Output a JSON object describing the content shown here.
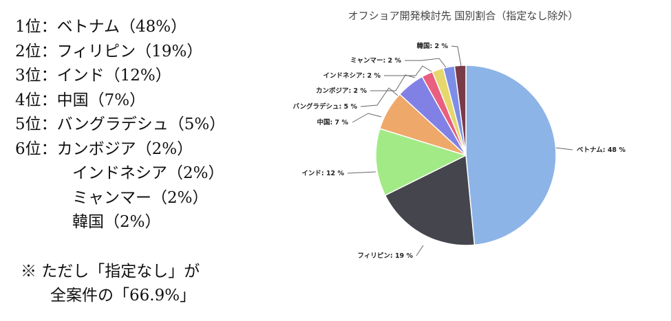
{
  "ranking": [
    {
      "rank": "1位：",
      "text": "ベトナム（48%）"
    },
    {
      "rank": "2位：",
      "text": "フィリピン（19%）"
    },
    {
      "rank": "3位：",
      "text": "インド（12%）"
    },
    {
      "rank": "4位：",
      "text": "中国（7%）"
    },
    {
      "rank": "5位：",
      "text": "バングラデシュ（5%）"
    },
    {
      "rank": "6位：",
      "text": "カンボジア（2%）"
    },
    {
      "rank": "",
      "text": "インドネシア（2%）"
    },
    {
      "rank": "",
      "text": "ミャンマー（2%）"
    },
    {
      "rank": "",
      "text": "韓国（2%）"
    }
  ],
  "note": {
    "line1": "※ ただし「指定なし」が",
    "line2": "全案件の「66.9%」"
  },
  "chart_data": {
    "type": "pie",
    "title": "オフショア開発検討先 国別割合（指定なし除外）",
    "slices": [
      {
        "label": "ベトナム",
        "value": 48,
        "display": "ベトナム: 48 %",
        "color": "#8db4e7"
      },
      {
        "label": "フィリピン",
        "value": 19,
        "display": "フィリピン: 19 %",
        "color": "#45454d"
      },
      {
        "label": "インド",
        "value": 12,
        "display": "インド: 12 %",
        "color": "#a2ea86"
      },
      {
        "label": "中国",
        "value": 7,
        "display": "中国: 7 %",
        "color": "#eea86a"
      },
      {
        "label": "バングラデシュ",
        "value": 5,
        "display": "バングラデシュ: 5 %",
        "color": "#8181e5"
      },
      {
        "label": "カンボジア",
        "value": 2,
        "display": "カンボジア: 2 %",
        "color": "#e85f7f"
      },
      {
        "label": "インドネシア",
        "value": 2,
        "display": "インドネシア: 2 %",
        "color": "#e5d76c"
      },
      {
        "label": "ミャンマー",
        "value": 2,
        "display": "ミャンマー: 2 %",
        "color": "#7c8ee8"
      },
      {
        "label": "韓国",
        "value": 2,
        "display": "韓国: 2 %",
        "color": "#7b3a48"
      }
    ]
  }
}
